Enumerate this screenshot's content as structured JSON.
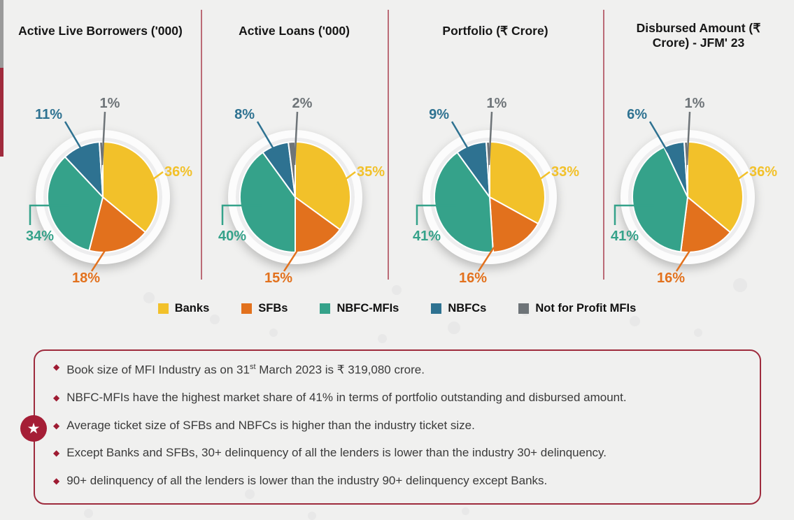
{
  "chart_data": [
    {
      "type": "pie",
      "title": "Active Live Borrowers ('000)",
      "categories": [
        "Banks",
        "SFBs",
        "NBFC-MFIs",
        "NBFCs",
        "Not for Profit MFIs"
      ],
      "values": [
        36,
        18,
        34,
        11,
        1
      ],
      "unit": "%",
      "start_angle_deg": 0,
      "direction": "clockwise",
      "legend_position": "bottom-shared"
    },
    {
      "type": "pie",
      "title": "Active Loans ('000)",
      "categories": [
        "Banks",
        "SFBs",
        "NBFC-MFIs",
        "NBFCs",
        "Not for Profit MFIs"
      ],
      "values": [
        35,
        15,
        40,
        8,
        2
      ],
      "unit": "%",
      "start_angle_deg": 0,
      "direction": "clockwise",
      "legend_position": "bottom-shared"
    },
    {
      "type": "pie",
      "title": "Portfolio (₹ Crore)",
      "categories": [
        "Banks",
        "SFBs",
        "NBFC-MFIs",
        "NBFCs",
        "Not for Profit MFIs"
      ],
      "values": [
        33,
        16,
        41,
        9,
        1
      ],
      "unit": "%",
      "start_angle_deg": 0,
      "direction": "clockwise",
      "legend_position": "bottom-shared"
    },
    {
      "type": "pie",
      "title": "Disbursed Amount (₹ Crore) - JFM' 23",
      "categories": [
        "Banks",
        "SFBs",
        "NBFC-MFIs",
        "NBFCs",
        "Not for Profit MFIs"
      ],
      "values": [
        36,
        16,
        41,
        6,
        1
      ],
      "unit": "%",
      "start_angle_deg": 0,
      "direction": "clockwise",
      "legend_position": "bottom-shared"
    }
  ],
  "legend": {
    "items": [
      {
        "label": "Banks",
        "color": "#f2c12a"
      },
      {
        "label": "SFBs",
        "color": "#e2711d"
      },
      {
        "label": "NBFC-MFIs",
        "color": "#35a28a"
      },
      {
        "label": "NBFCs",
        "color": "#2e7291"
      },
      {
        "label": "Not for Profit MFIs",
        "color": "#6e7478"
      }
    ]
  },
  "notes": {
    "bullet_glyph": "◆",
    "item1": {
      "before_sup": "Book size of MFI Industry as on 31",
      "sup": "st",
      "after_sup": " March 2023 is ₹ 319,080 crore."
    },
    "item2": "NBFC-MFIs have the highest market share of 41% in terms of portfolio outstanding  and disbursed amount.",
    "item3": "Average ticket size of SFBs and NBFCs is higher than the industry ticket size.",
    "item4": "Except Banks and SFBs, 30+ delinquency of  all the lenders is lower than the industry 30+ delinquency.",
    "item5": "90+ delinquency of all the lenders is lower than the industry  90+ delinquency except Banks."
  },
  "badge": {
    "icon_glyph": "★"
  },
  "style": {
    "accent_maroon": "#9e2b3d",
    "divider_pink": "#bb6b77",
    "background": "#f0f0ef"
  }
}
